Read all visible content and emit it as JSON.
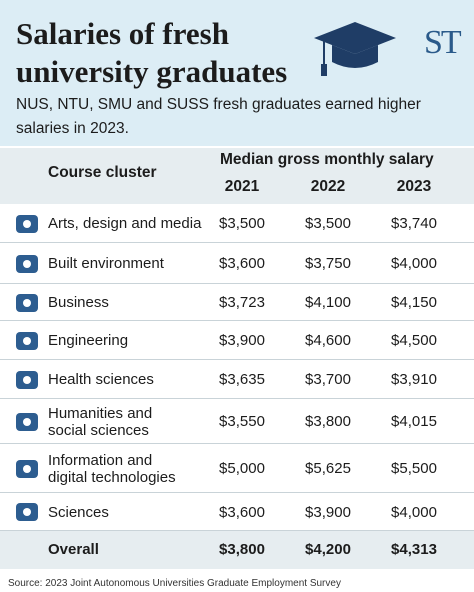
{
  "header": {
    "title_lines": [
      "Salaries of fresh",
      "university graduates"
    ],
    "logo": "ST",
    "subtitle_lines": [
      "NUS, NTU, SMU and SUSS fresh graduates earned higher",
      "salaries in 2023."
    ]
  },
  "table": {
    "course_header": "Course cluster",
    "salary_header": "Median gross monthly salary",
    "years": [
      "2021",
      "2022",
      "2023"
    ],
    "rows": [
      {
        "label": [
          "Arts, design and media"
        ],
        "values": [
          "$3,500",
          "$3,500",
          "$3,740"
        ]
      },
      {
        "label": [
          "Built environment"
        ],
        "values": [
          "$3,600",
          "$3,750",
          "$4,000"
        ]
      },
      {
        "label": [
          "Business"
        ],
        "values": [
          "$3,723",
          "$4,100",
          "$4,150"
        ]
      },
      {
        "label": [
          "Engineering"
        ],
        "values": [
          "$3,900",
          "$4,600",
          "$4,500"
        ]
      },
      {
        "label": [
          "Health sciences"
        ],
        "values": [
          "$3,635",
          "$3,700",
          "$3,910"
        ]
      },
      {
        "label": [
          "Humanities and",
          "social sciences"
        ],
        "values": [
          "$3,550",
          "$3,800",
          "$4,015"
        ]
      },
      {
        "label": [
          "Information and",
          "digital technologies"
        ],
        "values": [
          "$5,000",
          "$5,625",
          "$5,500"
        ]
      },
      {
        "label": [
          "Sciences"
        ],
        "values": [
          "$3,600",
          "$3,900",
          "$4,000"
        ]
      }
    ],
    "total": {
      "label": "Overall",
      "values": [
        "$3,800",
        "$4,200",
        "$4,313"
      ]
    }
  },
  "source": "Source: 2023 Joint Autonomous Universities Graduate Employment Survey"
}
